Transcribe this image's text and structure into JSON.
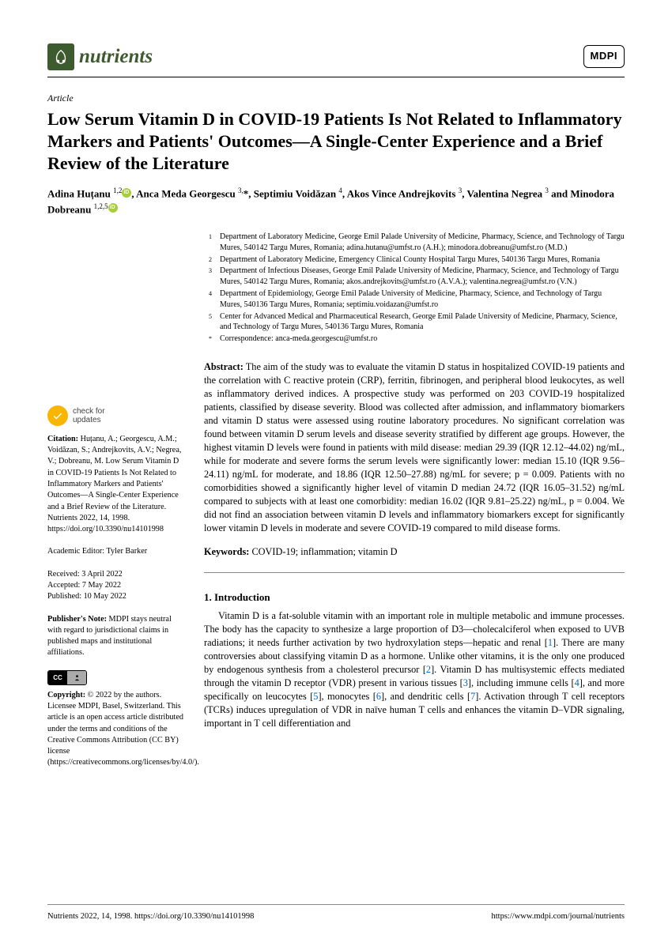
{
  "journal": {
    "name": "nutrients",
    "publisher_badge": "MDPI"
  },
  "article": {
    "type": "Article",
    "title": "Low Serum Vitamin D in COVID-19 Patients Is Not Related to Inflammatory Markers and Patients' Outcomes—A Single-Center Experience and a Brief Review of the Literature",
    "authors_html": "Adina Huțanu <sup>1,2</sup><span class='orcid'></span>, Anca Meda Georgescu <sup>3,</sup>*, Septimiu Voidăzan <sup>4</sup>, Akos Vince Andrejkovits <sup>3</sup>, Valentina Negrea <sup>3</sup> and Minodora Dobreanu <sup>1,2,5</sup><span class='orcid'></span>"
  },
  "affiliations": [
    {
      "num": "1",
      "text": "Department of Laboratory Medicine, George Emil Palade University of Medicine, Pharmacy, Science, and Technology of Targu Mures, 540142 Targu Mures, Romania; adina.hutanu@umfst.ro (A.H.); minodora.dobreanu@umfst.ro (M.D.)"
    },
    {
      "num": "2",
      "text": "Department of Laboratory Medicine, Emergency Clinical County Hospital Targu Mures, 540136 Targu Mures, Romania"
    },
    {
      "num": "3",
      "text": "Department of Infectious Diseases, George Emil Palade University of Medicine, Pharmacy, Science, and Technology of Targu Mures, 540142 Targu Mures, Romania; akos.andrejkovits@umfst.ro (A.V.A.); valentina.negrea@umfst.ro (V.N.)"
    },
    {
      "num": "4",
      "text": "Department of Epidemiology, George Emil Palade University of Medicine, Pharmacy, Science, and Technology of Targu Mures, 540136 Targu Mures, Romania; septimiu.voidazan@umfst.ro"
    },
    {
      "num": "5",
      "text": "Center for Advanced Medical and Pharmaceutical Research, George Emil Palade University of Medicine, Pharmacy, Science, and Technology of Targu Mures, 540136 Targu Mures, Romania"
    },
    {
      "num": "*",
      "text": "Correspondence: anca-meda.georgescu@umfst.ro"
    }
  ],
  "abstract": {
    "label": "Abstract:",
    "text": "The aim of the study was to evaluate the vitamin D status in hospitalized COVID-19 patients and the correlation with C reactive protein (CRP), ferritin, fibrinogen, and peripheral blood leukocytes, as well as inflammatory derived indices. A prospective study was performed on 203 COVID-19 hospitalized patients, classified by disease severity. Blood was collected after admission, and inflammatory biomarkers and vitamin D status were assessed using routine laboratory procedures. No significant correlation was found between vitamin D serum levels and disease severity stratified by different age groups. However, the highest vitamin D levels were found in patients with mild disease: median 29.39 (IQR 12.12–44.02) ng/mL, while for moderate and severe forms the serum levels were significantly lower: median 15.10 (IQR 9.56–24.11) ng/mL for moderate, and 18.86 (IQR 12.50–27.88) ng/mL for severe; p = 0.009. Patients with no comorbidities showed a significantly higher level of vitamin D median 24.72 (IQR 16.05–31.52) ng/mL compared to subjects with at least one comorbidity: median 16.02 (IQR 9.81–25.22) ng/mL, p = 0.004. We did not find an association between vitamin D levels and inflammatory biomarkers except for significantly lower vitamin D levels in moderate and severe COVID-19 compared to mild disease forms."
  },
  "keywords": {
    "label": "Keywords:",
    "text": "COVID-19; inflammation; vitamin D"
  },
  "sidebar": {
    "check_updates": "check for\nupdates",
    "citation_label": "Citation:",
    "citation": "Huțanu, A.; Georgescu, A.M.; Voidăzan, S.; Andrejkovits, A.V.; Negrea, V.; Dobreanu, M. Low Serum Vitamin D in COVID-19 Patients Is Not Related to Inflammatory Markers and Patients' Outcomes—A Single-Center Experience and a Brief Review of the Literature. Nutrients 2022, 14, 1998. https://doi.org/10.3390/nu14101998",
    "editor_label": "Academic Editor:",
    "editor": "Tyler Barker",
    "received": "Received: 3 April 2022",
    "accepted": "Accepted: 7 May 2022",
    "published": "Published: 10 May 2022",
    "pubnote_label": "Publisher's Note:",
    "pubnote": "MDPI stays neutral with regard to jurisdictional claims in published maps and institutional affiliations.",
    "copyright_label": "Copyright:",
    "copyright": "© 2022 by the authors. Licensee MDPI, Basel, Switzerland. This article is an open access article distributed under the terms and conditions of the Creative Commons Attribution (CC BY) license (https://creativecommons.org/licenses/by/4.0/)."
  },
  "section1": {
    "heading": "1. Introduction",
    "body_html": "Vitamin D is a fat-soluble vitamin with an important role in multiple metabolic and immune processes. The body has the capacity to synthesize a large proportion of D3—cholecalciferol when exposed to UVB radiations; it needs further activation by two hydroxylation steps—hepatic and renal [<span class='ref'>1</span>]. There are many controversies about classifying vitamin D as a hormone. Unlike other vitamins, it is the only one produced by endogenous synthesis from a cholesterol precursor [<span class='ref'>2</span>]. Vitamin D has multisystemic effects mediated through the vitamin D receptor (VDR) present in various tissues [<span class='ref'>3</span>], including immune cells [<span class='ref'>4</span>], and more specifically on leucocytes [<span class='ref'>5</span>], monocytes [<span class='ref'>6</span>], and dendritic cells [<span class='ref'>7</span>]. Activation through T cell receptors (TCRs) induces upregulation of VDR in naïve human T cells and enhances the vitamin D–VDR signaling, important in T cell differentiation and"
  },
  "footer": {
    "left": "Nutrients 2022, 14, 1998. https://doi.org/10.3390/nu14101998",
    "right": "https://www.mdpi.com/journal/nutrients"
  }
}
